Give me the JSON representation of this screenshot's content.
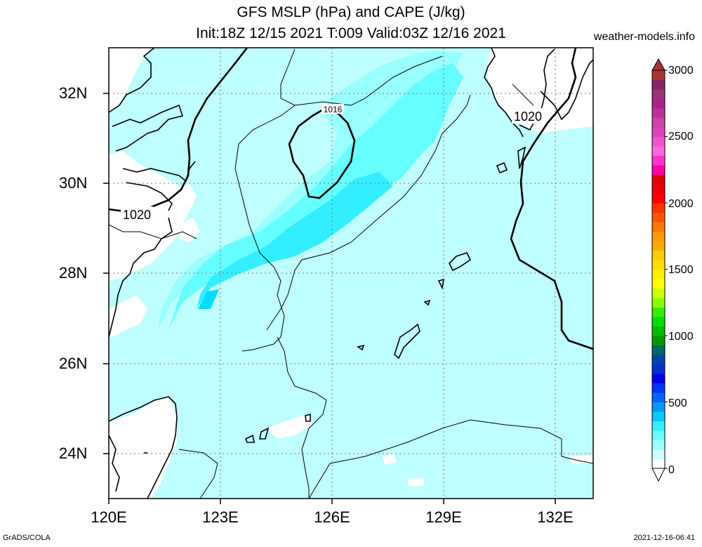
{
  "header": {
    "title_line1": "GFS MSLP (hPa) and CAPE (J/kg)",
    "title_line2": "Init:18Z 12/15 2021 T:009 Valid:03Z 12/16 2021",
    "site": "weather-models.info"
  },
  "map": {
    "lat_labels": [
      "32N",
      "30N",
      "28N",
      "26N",
      "24N"
    ],
    "lon_labels": [
      "120E",
      "123E",
      "126E",
      "129E",
      "132E"
    ],
    "isobar_labels": [
      "1016",
      "1020",
      "1020"
    ],
    "colors": {
      "ocean_cape": "#bfffff",
      "cape_mid": "#99ffff",
      "cape_high": "#66ffff",
      "cape_max": "#33eeff",
      "land": "#ffffff",
      "grid": "#777777"
    }
  },
  "colorbar": {
    "labels": [
      "3000",
      "2500",
      "2000",
      "1500",
      "1000",
      "500",
      "0"
    ],
    "colors": [
      "#ffffff",
      "#ccffff",
      "#99ffff",
      "#66ffff",
      "#33eeff",
      "#00ccff",
      "#0099ff",
      "#0066ff",
      "#0033ff",
      "#0000ee",
      "#0033cc",
      "#0044aa",
      "#006666",
      "#009900",
      "#00bb00",
      "#00dd00",
      "#33ee00",
      "#88ff00",
      "#ccff00",
      "#ffff00",
      "#ffee00",
      "#ffdd00",
      "#ffcc00",
      "#ffaa00",
      "#ff9900",
      "#ff7700",
      "#ff5500",
      "#ff3300",
      "#ff0000",
      "#ee0000",
      "#dd0000",
      "#ff00aa",
      "#ff33cc",
      "#ff66dd",
      "#ee55cc",
      "#dd44bb",
      "#cc44aa",
      "#bb3399",
      "#aa2288",
      "#993377",
      "#882266",
      "#aa3333"
    ]
  },
  "footer": {
    "left": "GrADS/COLA",
    "right": "2021-12-16-06:41"
  }
}
